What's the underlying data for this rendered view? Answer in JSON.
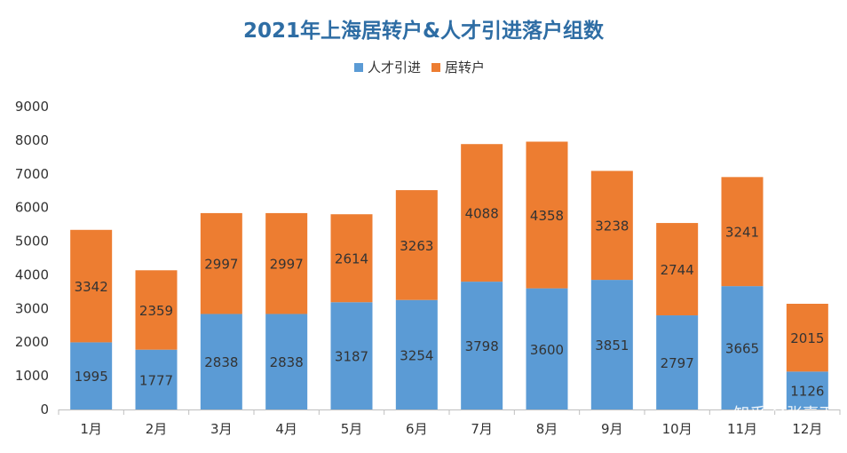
{
  "chart_data": {
    "type": "bar",
    "stacked": true,
    "title": "2021年上海居转户&人才引进落户组数",
    "categories": [
      "1月",
      "2月",
      "3月",
      "4月",
      "5月",
      "6月",
      "7月",
      "8月",
      "9月",
      "10月",
      "11月",
      "12月"
    ],
    "series": [
      {
        "name": "人才引进",
        "color": "#5b9bd5",
        "values": [
          1995,
          1777,
          2838,
          2838,
          3187,
          3254,
          3798,
          3600,
          3851,
          2797,
          3665,
          1126
        ]
      },
      {
        "name": "居转户",
        "color": "#ed7d31",
        "values": [
          3342,
          2359,
          2997,
          2997,
          2614,
          3263,
          4088,
          4358,
          3238,
          2744,
          3241,
          2015
        ]
      }
    ],
    "ylim": [
      0,
      9000
    ],
    "yticks": [
      0,
      1000,
      2000,
      3000,
      4000,
      5000,
      6000,
      7000,
      8000,
      9000
    ],
    "legend_position": "top",
    "grid": false
  },
  "watermark": "知乎 @张嘉天"
}
